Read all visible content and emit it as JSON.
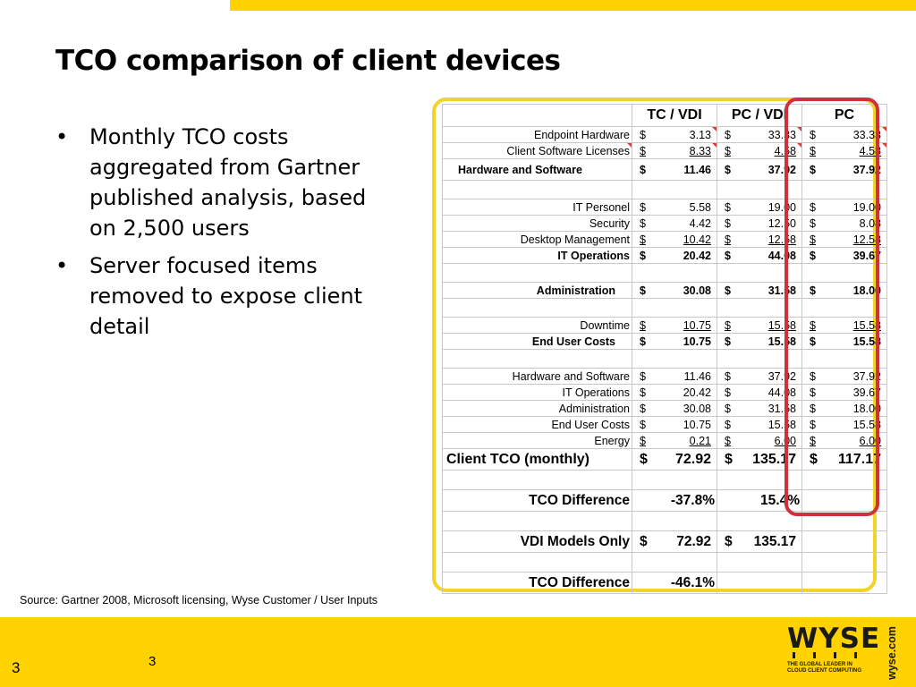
{
  "slide": {
    "title": "TCO comparison of client devices",
    "bullets": [
      "Monthly TCO costs aggregated from Gartner published analysis, based on 2,500 users",
      "Server focused items removed to expose client detail"
    ],
    "source": "Source: Gartner 2008, Microsoft licensing, Wyse Customer / User Inputs",
    "page_number_left": "3",
    "page_number_center": "3"
  },
  "brand": {
    "logo_text": "WYSE",
    "tagline_1": "THE GLOBAL LEADER IN",
    "tagline_2": "CLOUD CLIENT COMPUTING",
    "site": "wyse.com",
    "accent_yellow": "#FFD200",
    "highlight_red": "#D0303C"
  },
  "table": {
    "headers": [
      "TC / VDI",
      "PC / VDI",
      "PC"
    ],
    "hw": [
      {
        "label": "Endpoint Hardware",
        "vals": [
          "$",
          "3.13",
          "$",
          "33.33",
          "$",
          "33.33"
        ]
      },
      {
        "label": "Client Software Licenses",
        "vals": [
          "$",
          "8.33",
          "$",
          "4.58",
          "$",
          "4.58"
        ]
      }
    ],
    "hw_total": {
      "label": "Hardware and Software",
      "vals": [
        "$",
        "11.46",
        "$",
        "37.92",
        "$",
        "37.92"
      ]
    },
    "it": [
      {
        "label": "IT Personel",
        "vals": [
          "$",
          "5.58",
          "$",
          "19.00",
          "$",
          "19.00"
        ]
      },
      {
        "label": "Security",
        "vals": [
          "$",
          "4.42",
          "$",
          "12.50",
          "$",
          "8.08"
        ]
      },
      {
        "label": "Desktop Management",
        "vals": [
          "$",
          "10.42",
          "$",
          "12.58",
          "$",
          "12.58"
        ]
      }
    ],
    "it_total": {
      "label": "IT Operations",
      "vals": [
        "$",
        "20.42",
        "$",
        "44.08",
        "$",
        "39.67"
      ]
    },
    "admin": {
      "label": "Administration",
      "vals": [
        "$",
        "30.08",
        "$",
        "31.58",
        "$",
        "18.00"
      ]
    },
    "downtime": {
      "label": "Downtime",
      "vals": [
        "$",
        "10.75",
        "$",
        "15.58",
        "$",
        "15.58"
      ]
    },
    "euc_total": {
      "label": "End User Costs",
      "vals": [
        "$",
        "10.75",
        "$",
        "15.58",
        "$",
        "15.58"
      ]
    },
    "summary": [
      {
        "label": "Hardware and Software",
        "vals": [
          "$",
          "11.46",
          "$",
          "37.92",
          "$",
          "37.92"
        ]
      },
      {
        "label": "IT Operations",
        "vals": [
          "$",
          "20.42",
          "$",
          "44.08",
          "$",
          "39.67"
        ]
      },
      {
        "label": "Administration",
        "vals": [
          "$",
          "30.08",
          "$",
          "31.58",
          "$",
          "18.00"
        ]
      },
      {
        "label": "End User Costs",
        "vals": [
          "$",
          "10.75",
          "$",
          "15.58",
          "$",
          "15.58"
        ]
      },
      {
        "label": "Energy",
        "vals": [
          "$",
          "0.21",
          "$",
          "6.00",
          "$",
          "6.00"
        ]
      }
    ],
    "client_tco": {
      "label": "Client TCO (monthly)",
      "vals": [
        "$",
        "72.92",
        "$",
        "135.17",
        "$",
        "117.17"
      ]
    },
    "tco_diff": {
      "label": "TCO Difference",
      "vals": [
        "-37.8%",
        "15.4%",
        ""
      ]
    },
    "vdi_only": {
      "label": "VDI Models Only",
      "vals": [
        "$",
        "72.92",
        "$",
        "135.17"
      ]
    },
    "tco_diff2": {
      "label": "TCO Difference",
      "vals": [
        "-46.1%"
      ]
    }
  }
}
